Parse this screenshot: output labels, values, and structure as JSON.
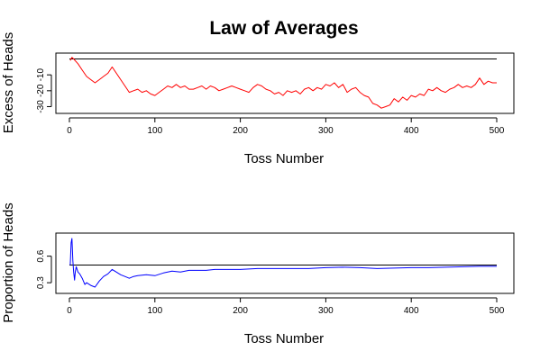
{
  "figure": {
    "title": "Law of Averages"
  },
  "chart_data": [
    {
      "type": "line",
      "title": "",
      "xlabel": "Toss Number",
      "ylabel": "Excess of Heads",
      "xlim": [
        0,
        500
      ],
      "ylim": [
        -32,
        2
      ],
      "x_ticks": [
        0,
        100,
        200,
        300,
        400,
        500
      ],
      "y_ticks": [
        -30,
        -20,
        -10
      ],
      "reference_line": 0,
      "grid": false,
      "series": [
        {
          "color": "#ff0000",
          "x": [
            1,
            3,
            5,
            10,
            15,
            20,
            25,
            30,
            35,
            40,
            45,
            50,
            55,
            60,
            65,
            70,
            75,
            80,
            85,
            90,
            95,
            100,
            105,
            110,
            115,
            120,
            125,
            130,
            135,
            140,
            145,
            150,
            155,
            160,
            165,
            170,
            175,
            180,
            185,
            190,
            195,
            200,
            205,
            210,
            215,
            220,
            225,
            230,
            235,
            240,
            245,
            250,
            255,
            260,
            265,
            270,
            275,
            280,
            285,
            290,
            295,
            300,
            305,
            310,
            315,
            320,
            325,
            330,
            335,
            340,
            345,
            350,
            355,
            360,
            365,
            370,
            375,
            380,
            385,
            390,
            395,
            400,
            405,
            410,
            415,
            420,
            425,
            430,
            435,
            440,
            445,
            450,
            455,
            460,
            465,
            470,
            475,
            480,
            485,
            490,
            495,
            500
          ],
          "values": [
            -1,
            1,
            0,
            -3,
            -7,
            -11,
            -13,
            -15,
            -13,
            -11,
            -9,
            -5,
            -9,
            -13,
            -17,
            -21,
            -20,
            -19,
            -21,
            -20,
            -22,
            -23,
            -21,
            -19,
            -17,
            -18,
            -16,
            -18,
            -17,
            -19,
            -19,
            -18,
            -17,
            -19,
            -17,
            -18,
            -20,
            -19,
            -18,
            -17,
            -18,
            -19,
            -20,
            -21,
            -18,
            -16,
            -17,
            -19,
            -20,
            -22,
            -21,
            -23,
            -20,
            -21,
            -20,
            -22,
            -19,
            -18,
            -20,
            -18,
            -19,
            -16,
            -17,
            -15,
            -18,
            -16,
            -21,
            -19,
            -18,
            -21,
            -23,
            -24,
            -28,
            -29,
            -31,
            -30,
            -29,
            -25,
            -27,
            -24,
            -26,
            -23,
            -24,
            -22,
            -23,
            -19,
            -20,
            -18,
            -20,
            -21,
            -19,
            -18,
            -16,
            -18,
            -17,
            -18,
            -16,
            -12,
            -16,
            -14,
            -15,
            -15
          ]
        }
      ]
    },
    {
      "type": "line",
      "title": "",
      "xlabel": "Toss Number",
      "ylabel": "Proportion of Heads",
      "xlim": [
        0,
        500
      ],
      "ylim": [
        0.22,
        0.83
      ],
      "x_ticks": [
        0,
        100,
        200,
        300,
        400,
        500
      ],
      "y_ticks": [
        0.3,
        0.6
      ],
      "reference_line": 0.5,
      "grid": false,
      "series": [
        {
          "color": "#0000ff",
          "x": [
            1,
            2,
            3,
            4,
            5,
            6,
            7,
            8,
            10,
            12,
            15,
            18,
            20,
            25,
            30,
            35,
            40,
            45,
            50,
            55,
            60,
            65,
            70,
            75,
            80,
            90,
            100,
            110,
            120,
            130,
            140,
            150,
            160,
            170,
            180,
            200,
            220,
            240,
            260,
            280,
            300,
            320,
            340,
            360,
            380,
            400,
            420,
            440,
            460,
            480,
            500
          ],
          "values": [
            0.5,
            0.75,
            0.8,
            0.55,
            0.42,
            0.33,
            0.43,
            0.48,
            0.42,
            0.4,
            0.35,
            0.28,
            0.3,
            0.27,
            0.25,
            0.32,
            0.37,
            0.4,
            0.45,
            0.42,
            0.39,
            0.37,
            0.35,
            0.37,
            0.38,
            0.39,
            0.38,
            0.41,
            0.43,
            0.42,
            0.44,
            0.44,
            0.44,
            0.45,
            0.45,
            0.45,
            0.46,
            0.46,
            0.46,
            0.46,
            0.47,
            0.475,
            0.47,
            0.46,
            0.465,
            0.47,
            0.47,
            0.475,
            0.48,
            0.485,
            0.485
          ]
        }
      ]
    }
  ]
}
